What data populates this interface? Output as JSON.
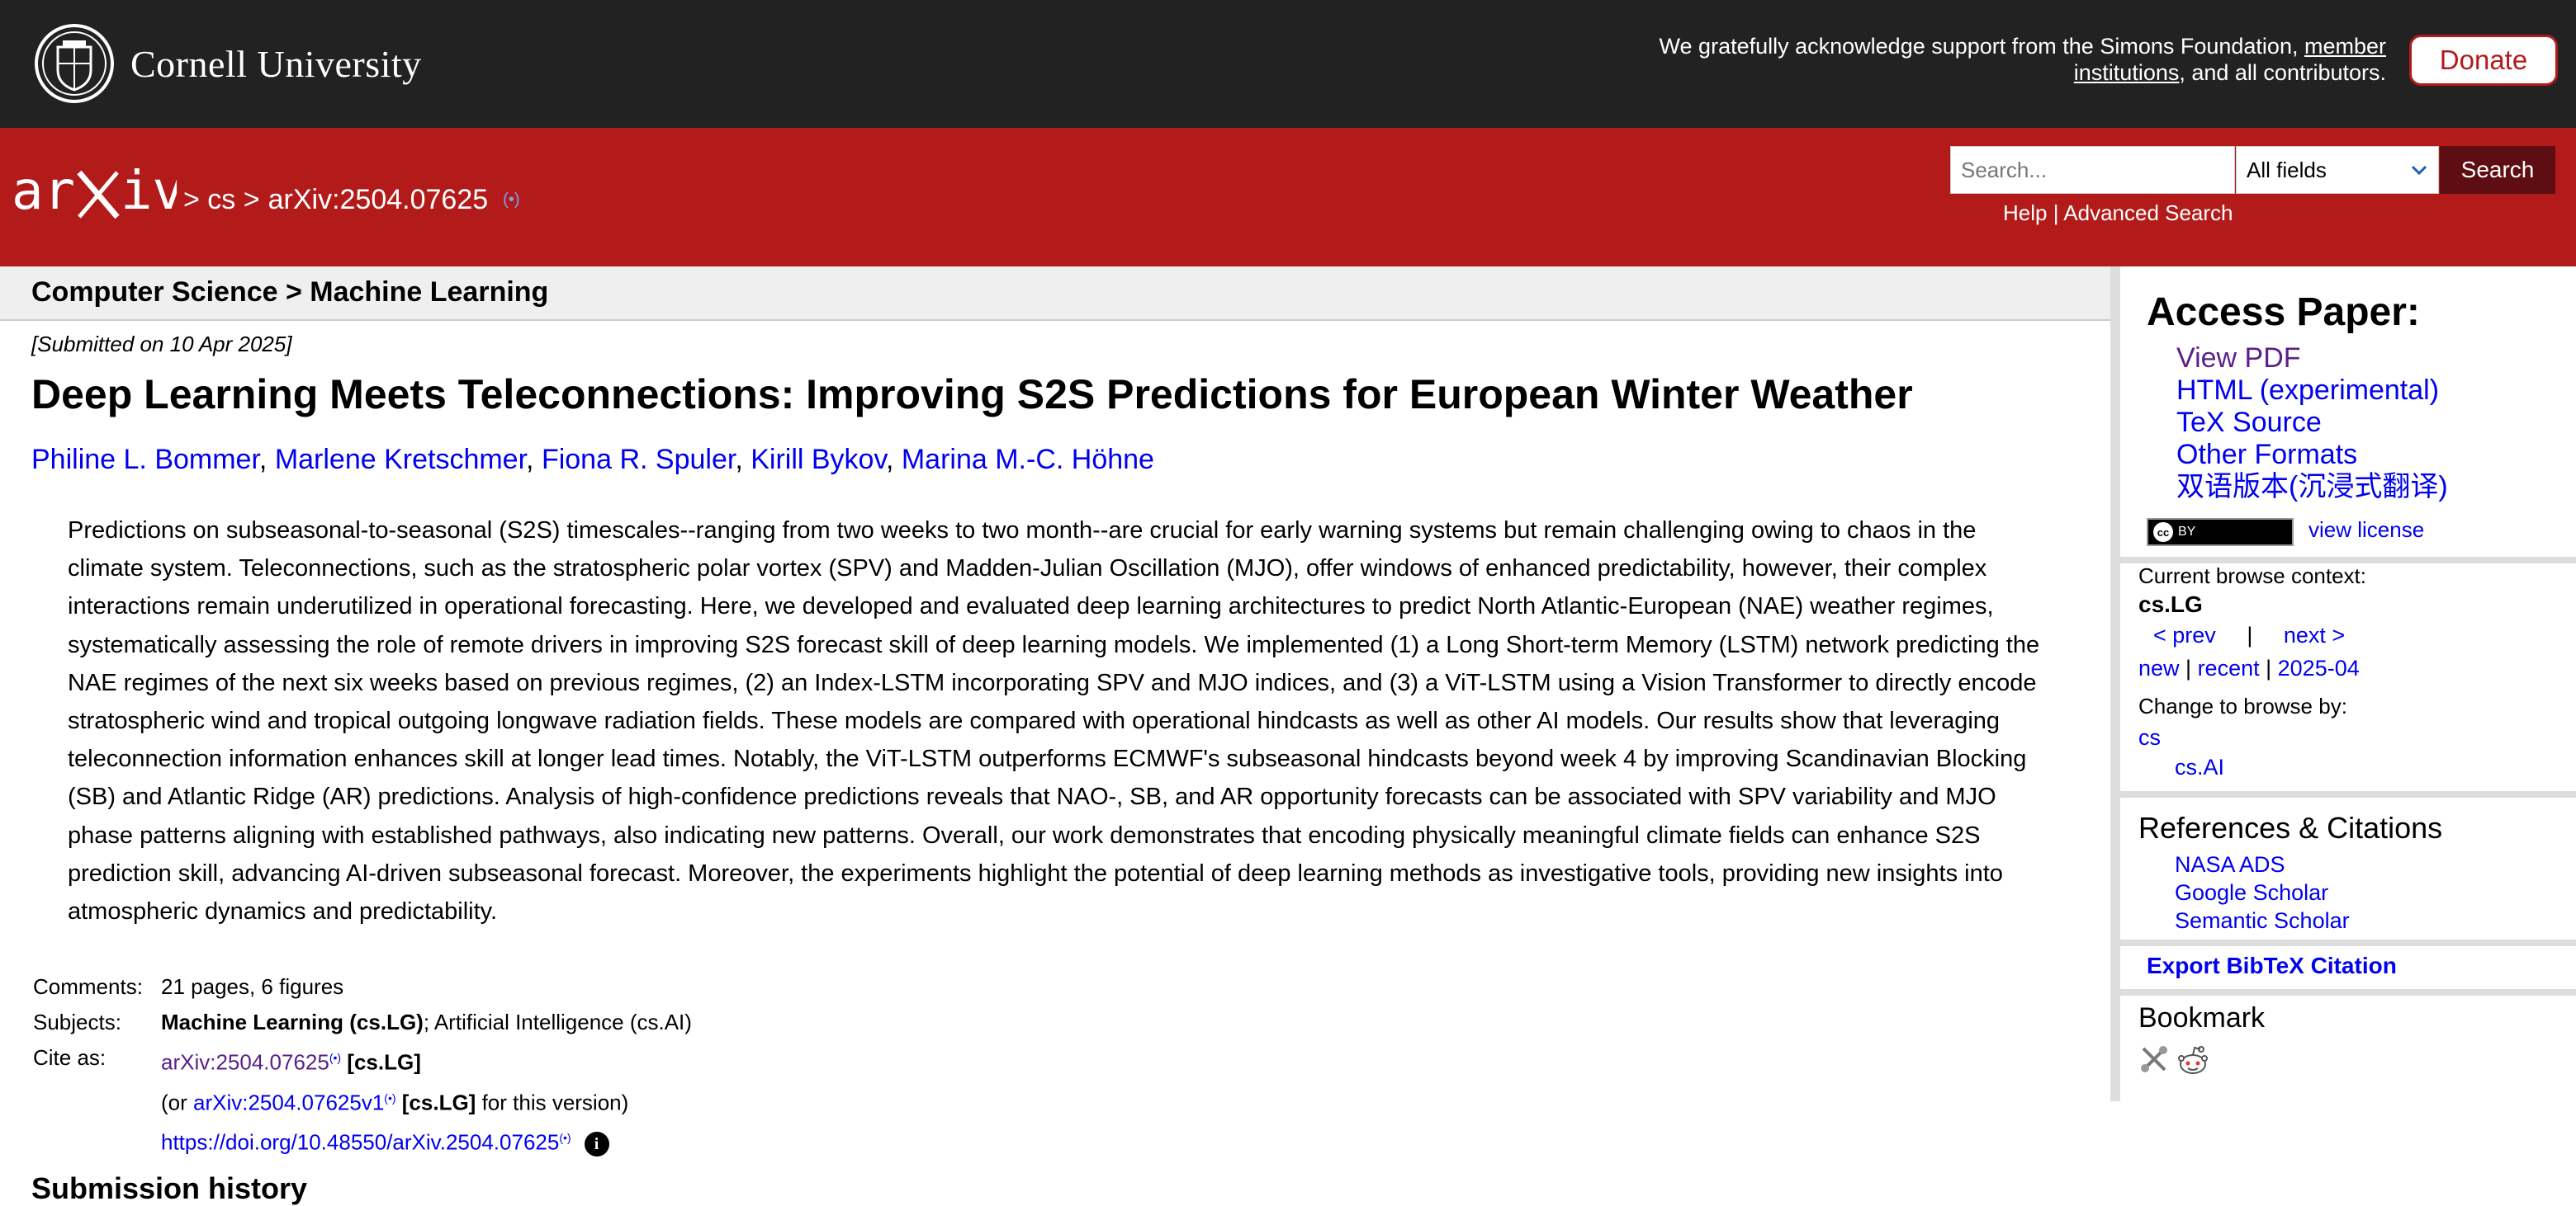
{
  "top": {
    "university": "Cornell University",
    "support_pre": "We gratefully acknowledge support from the Simons Foundation, ",
    "support_link1": "member",
    "support_link2": "institutions",
    "support_post": ", and all contributors.",
    "donate": "Donate"
  },
  "header": {
    "crumb1": "> cs >",
    "crumb2": "arXiv:2504.07625",
    "rss": "(•)",
    "search_placeholder": "Search...",
    "fields_value": "All fields",
    "search_button": "Search",
    "help": "Help",
    "sep": " | ",
    "advanced": "Advanced Search"
  },
  "subject_bar": "Computer Science > Machine Learning",
  "paper": {
    "submitted": "[Submitted on 10 Apr 2025]",
    "title": "Deep Learning Meets Teleconnections: Improving S2S Predictions for European Winter Weather",
    "authors": [
      "Philine L. Bommer",
      "Marlene Kretschmer",
      "Fiona R. Spuler",
      "Kirill Bykov",
      "Marina M.-C. Höhne"
    ],
    "abstract": "Predictions on subseasonal-to-seasonal (S2S) timescales--ranging from two weeks to two month--are crucial for early warning systems but remain challenging owing to chaos in the climate system. Teleconnections, such as the stratospheric polar vortex (SPV) and Madden-Julian Oscillation (MJO), offer windows of enhanced predictability, however, their complex interactions remain underutilized in operational forecasting. Here, we developed and evaluated deep learning architectures to predict North Atlantic-European (NAE) weather regimes, systematically assessing the role of remote drivers in improving S2S forecast skill of deep learning models. We implemented (1) a Long Short-term Memory (LSTM) network predicting the NAE regimes of the next six weeks based on previous regimes, (2) an Index-LSTM incorporating SPV and MJO indices, and (3) a ViT-LSTM using a Vision Transformer to directly encode stratospheric wind and tropical outgoing longwave radiation fields. These models are compared with operational hindcasts as well as other AI models. Our results show that leveraging teleconnection information enhances skill at longer lead times. Notably, the ViT-LSTM outperforms ECMWF's subseasonal hindcasts beyond week 4 by improving Scandinavian Blocking (SB) and Atlantic Ridge (AR) predictions. Analysis of high-confidence predictions reveals that NAO-, SB, and AR opportunity forecasts can be associated with SPV variability and MJO phase patterns aligning with established pathways, also indicating new patterns. Overall, our work demonstrates that encoding physically meaningful climate fields can enhance S2S prediction skill, advancing AI-driven subseasonal forecast. Moreover, the experiments highlight the potential of deep learning methods as investigative tools, providing new insights into atmospheric dynamics and predictability."
  },
  "meta": {
    "comments_label": "Comments:",
    "comments": "21 pages, 6 figures",
    "subjects_label": "Subjects:",
    "subjects_main": "Machine Learning (cs.LG)",
    "subjects_rest": "; Artificial Intelligence (cs.AI)",
    "cite_label": "Cite as:",
    "cite_id": "arXiv:2504.07625",
    "cite_cat": "[cs.LG]",
    "or_pre": "(or ",
    "cite_v1": "arXiv:2504.07625v1",
    "or_cat": "[cs.LG]",
    "or_post": " for this version)",
    "doi": "https://doi.org/10.48550/arXiv.2504.07625",
    "rss_sup": "(•)",
    "info": "i"
  },
  "submission_history": "Submission history",
  "sidebar": {
    "access_title": "Access Paper:",
    "access_links": [
      "View PDF",
      "HTML (experimental)",
      "TeX Source",
      "Other Formats",
      "双语版本(沉浸式翻译)"
    ],
    "cc_text": "BY",
    "cc_glyph": "cc",
    "view_license": "view license",
    "context_label": "Current browse context:",
    "context_value": "cs.LG",
    "prev": "< prev",
    "pipe": "|",
    "next": "next >",
    "new": "new",
    "recent": "recent",
    "month": "2025-04",
    "change_label": "Change to browse by:",
    "cs": "cs",
    "csai": "cs.AI",
    "refs_title": "References & Citations",
    "refs": [
      "NASA ADS",
      "Google Scholar",
      "Semantic Scholar"
    ],
    "bibtex": "Export BibTeX Citation",
    "bookmark_title": "Bookmark"
  }
}
